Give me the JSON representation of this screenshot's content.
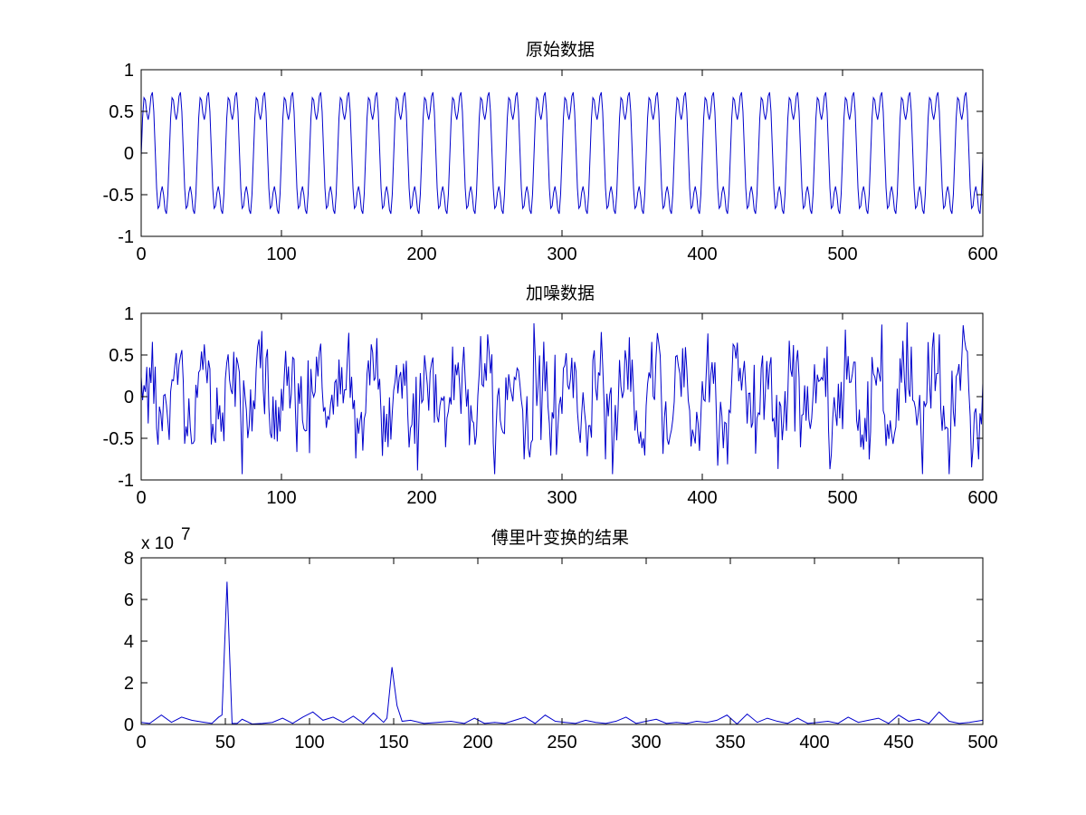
{
  "style": {
    "line_color": "#0000cc",
    "axis_color": "#000000",
    "background": "#ffffff"
  },
  "chart_data": [
    {
      "type": "line",
      "title": "原始数据",
      "xlim": [
        0,
        600
      ],
      "ylim": [
        -1,
        1
      ],
      "xticks": [
        0,
        100,
        200,
        300,
        400,
        500,
        600
      ],
      "xtick_labels": [
        "0",
        "100",
        "200",
        "300",
        "400",
        "500",
        "600"
      ],
      "yticks": [
        -1,
        -0.5,
        0,
        0.5,
        1
      ],
      "ytick_labels": [
        "-1",
        "-0.5",
        "0",
        "0.5",
        "1"
      ],
      "grid": false,
      "series": [
        {
          "signal": "periodic",
          "period_samples": 20,
          "peak_max": 0.88,
          "peak_min": -0.88,
          "secondary_extrema": [
            0.08,
            -0.5,
            0.5
          ],
          "x_range": [
            0,
            600
          ]
        }
      ]
    },
    {
      "type": "line",
      "title": "加噪数据",
      "xlim": [
        0,
        600
      ],
      "ylim": [
        -1,
        1
      ],
      "xticks": [
        0,
        100,
        200,
        300,
        400,
        500,
        600
      ],
      "xtick_labels": [
        "0",
        "100",
        "200",
        "300",
        "400",
        "500",
        "600"
      ],
      "yticks": [
        -1,
        -0.5,
        0,
        0.5,
        1
      ],
      "ytick_labels": [
        "-1",
        "-0.5",
        "0",
        "0.5",
        "1"
      ],
      "grid": false,
      "series": [
        {
          "signal": "periodic plus random noise",
          "period_samples": 20,
          "range": [
            -0.93,
            0.95
          ],
          "x_range": [
            0,
            600
          ]
        }
      ]
    },
    {
      "type": "line",
      "title": "傅里叶变换的结果",
      "exponent_label": {
        "base": "x 10",
        "power": "7"
      },
      "xlim": [
        0,
        500
      ],
      "ylim": [
        0,
        8
      ],
      "xticks": [
        0,
        50,
        100,
        150,
        200,
        250,
        300,
        350,
        400,
        450,
        500
      ],
      "xtick_labels": [
        "0",
        "50",
        "100",
        "150",
        "200",
        "250",
        "300",
        "350",
        "400",
        "450",
        "500"
      ],
      "yticks": [
        0,
        2,
        4,
        6,
        8
      ],
      "ytick_labels": [
        "0",
        "2",
        "4",
        "6",
        "8"
      ],
      "grid": false,
      "series": [
        {
          "x": [
            0,
            5,
            12,
            18,
            24,
            30,
            36,
            42,
            46,
            48,
            51,
            54,
            57,
            60,
            66,
            72,
            78,
            84,
            90,
            96,
            102,
            108,
            114,
            120,
            126,
            132,
            138,
            144,
            146,
            149,
            152,
            155,
            160,
            168,
            176,
            184,
            192,
            198,
            204,
            210,
            216,
            222,
            228,
            234,
            240,
            246,
            252,
            258,
            264,
            270,
            276,
            282,
            288,
            294,
            300,
            306,
            312,
            318,
            324,
            330,
            336,
            342,
            348,
            354,
            360,
            366,
            372,
            378,
            384,
            390,
            396,
            402,
            408,
            414,
            420,
            426,
            432,
            438,
            444,
            450,
            456,
            462,
            468,
            474,
            480,
            486,
            492,
            500
          ],
          "y": [
            0.1,
            0.05,
            0.45,
            0.1,
            0.35,
            0.2,
            0.12,
            0.05,
            0.35,
            0.45,
            6.85,
            0.05,
            0.05,
            0.25,
            0.02,
            0.05,
            0.1,
            0.3,
            0.05,
            0.35,
            0.6,
            0.2,
            0.35,
            0.1,
            0.4,
            0.05,
            0.55,
            0.1,
            0.3,
            2.75,
            0.9,
            0.15,
            0.2,
            0.05,
            0.1,
            0.15,
            0.05,
            0.3,
            0.05,
            0.1,
            0.05,
            0.2,
            0.35,
            0.05,
            0.45,
            0.15,
            0.1,
            0.05,
            0.2,
            0.1,
            0.05,
            0.15,
            0.35,
            0.05,
            0.15,
            0.25,
            0.05,
            0.1,
            0.05,
            0.15,
            0.1,
            0.2,
            0.45,
            0.02,
            0.5,
            0.1,
            0.3,
            0.15,
            0.05,
            0.3,
            0.05,
            0.1,
            0.15,
            0.05,
            0.35,
            0.1,
            0.2,
            0.3,
            0.05,
            0.45,
            0.15,
            0.25,
            0.05,
            0.6,
            0.15,
            0.05,
            0.1,
            0.2
          ]
        }
      ]
    }
  ]
}
